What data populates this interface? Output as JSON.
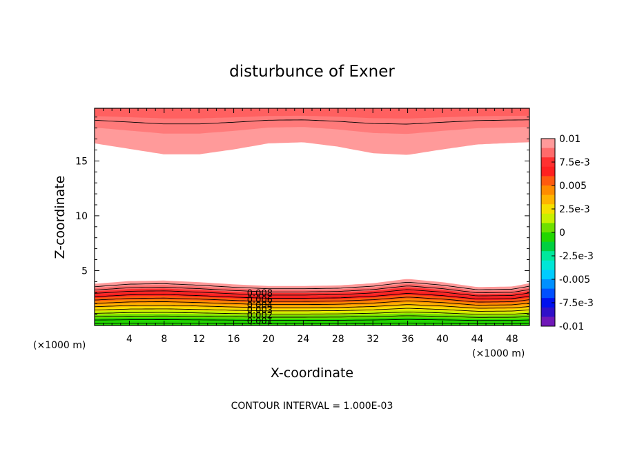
{
  "chart_data": {
    "type": "contour",
    "title": "disturbunce of Exner",
    "xlabel": "X-coordinate",
    "ylabel": "Z-coordinate",
    "x_unit": "(×1000 m)",
    "y_unit": "(×1000 m)",
    "note": "CONTOUR INTERVAL = 1.000E-03",
    "xlim": [
      0,
      50
    ],
    "ylim": [
      0,
      19.8
    ],
    "x_ticks": [
      4,
      8,
      12,
      16,
      20,
      24,
      28,
      32,
      36,
      40,
      44,
      48
    ],
    "x_tick_labels": [
      "4",
      "8",
      "12",
      "16",
      "20",
      "24",
      "28",
      "32",
      "36",
      "40",
      "44",
      "48"
    ],
    "y_ticks": [
      5,
      10,
      15
    ],
    "y_tick_labels": [
      "5",
      "10",
      "15"
    ],
    "contour_interval": 0.001,
    "colorbar": {
      "range": [
        -0.01,
        0.01
      ],
      "tick_labels": [
        "0.01",
        "7.5e-3",
        "0.005",
        "2.5e-3",
        "0",
        "-2.5e-3",
        "-0.005",
        "-7.5e-3",
        "-0.01"
      ],
      "colors": [
        "#ff9a9a",
        "#ff6b6b",
        "#ff3030",
        "#ff2020",
        "#ff5a10",
        "#ff8c00",
        "#ffb400",
        "#f5e000",
        "#c8f000",
        "#6ee000",
        "#22d600",
        "#00d040",
        "#00e89c",
        "#00e6d6",
        "#00ccff",
        "#0090ff",
        "#0050ff",
        "#0010ee",
        "#3010c8",
        "#7018b8"
      ]
    },
    "contour_labels": [
      "0.008",
      "0.006",
      "0.004",
      "0.003",
      "0.002",
      "0.001"
    ],
    "lower_band": {
      "x": [
        0,
        4,
        8,
        12,
        16,
        20,
        24,
        28,
        32,
        36,
        40,
        44,
        48,
        50
      ],
      "top_z": [
        3.8,
        4.05,
        4.1,
        3.95,
        3.75,
        3.6,
        3.6,
        3.65,
        3.85,
        4.25,
        3.95,
        3.5,
        3.55,
        3.85
      ]
    },
    "upper_band": {
      "x": [
        0,
        4,
        8,
        12,
        16,
        20,
        24,
        28,
        32,
        36,
        40,
        44,
        48,
        50
      ],
      "bottom_z": [
        16.6,
        16.1,
        15.6,
        15.6,
        16.05,
        16.6,
        16.7,
        16.3,
        15.7,
        15.55,
        16.05,
        16.5,
        16.65,
        16.7
      ]
    }
  }
}
